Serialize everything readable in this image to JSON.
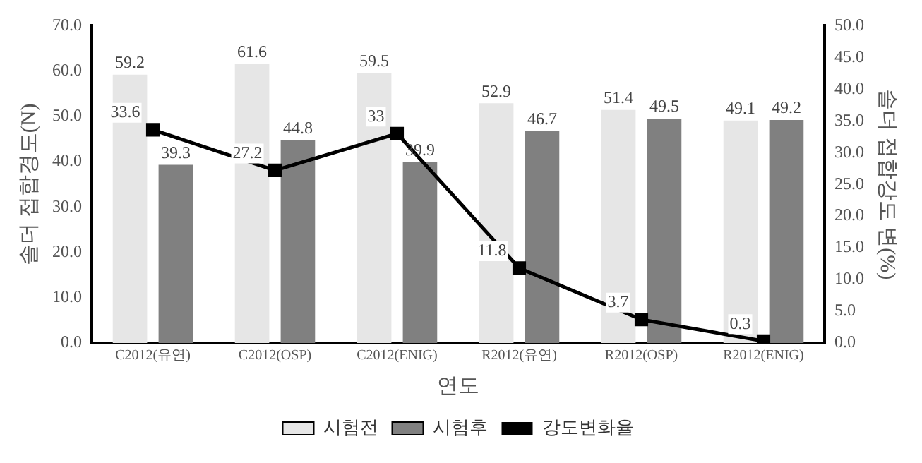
{
  "chart_data": {
    "type": "bar",
    "xlabel": "연도",
    "ylabel": "솔더 접합경도(N)",
    "y2label": "솔더 접합강도 변(%)",
    "categories": [
      "C2012(유연)",
      "C2012(OSP)",
      "C2012(ENIG)",
      "R2012(유연)",
      "R2012(OSP)",
      "R2012(ENIG)"
    ],
    "series": [
      {
        "name": "시험전",
        "color": "#e6e6e6",
        "values": [
          59.2,
          61.6,
          59.5,
          52.9,
          51.4,
          49.1
        ]
      },
      {
        "name": "시험후",
        "color": "#808080",
        "values": [
          39.3,
          44.8,
          39.9,
          46.7,
          49.5,
          49.2
        ]
      },
      {
        "name": "강도변화율",
        "type": "line",
        "axis": "y2",
        "color": "#000000",
        "values": [
          33.6,
          27.2,
          33.0,
          11.8,
          3.7,
          0.3
        ]
      }
    ],
    "ylim": [
      0,
      70
    ],
    "yticks": [
      {
        "value": 0,
        "label": "0.0"
      },
      {
        "value": 10,
        "label": "10.0"
      },
      {
        "value": 20,
        "label": "20.0"
      },
      {
        "value": 30,
        "label": "30.0"
      },
      {
        "value": 40,
        "label": "40.0"
      },
      {
        "value": 50,
        "label": "50.0"
      },
      {
        "value": 60,
        "label": "60.0"
      },
      {
        "value": 70,
        "label": "70.0"
      }
    ],
    "y2lim": [
      0,
      50
    ],
    "y2ticks": [
      {
        "value": 0,
        "label": "0.0"
      },
      {
        "value": 5,
        "label": "5.0"
      },
      {
        "value": 10,
        "label": "10.0"
      },
      {
        "value": 15,
        "label": "15.0"
      },
      {
        "value": 20,
        "label": "20.0"
      },
      {
        "value": 25,
        "label": "25.0"
      },
      {
        "value": 30,
        "label": "30.0"
      },
      {
        "value": 35,
        "label": "35.0"
      },
      {
        "value": 40,
        "label": "40.0"
      },
      {
        "value": 45,
        "label": "45.0"
      },
      {
        "value": 50,
        "label": "50.0"
      }
    ],
    "data_labels": true,
    "legend": "bottom",
    "marker": "square",
    "grid": false
  }
}
